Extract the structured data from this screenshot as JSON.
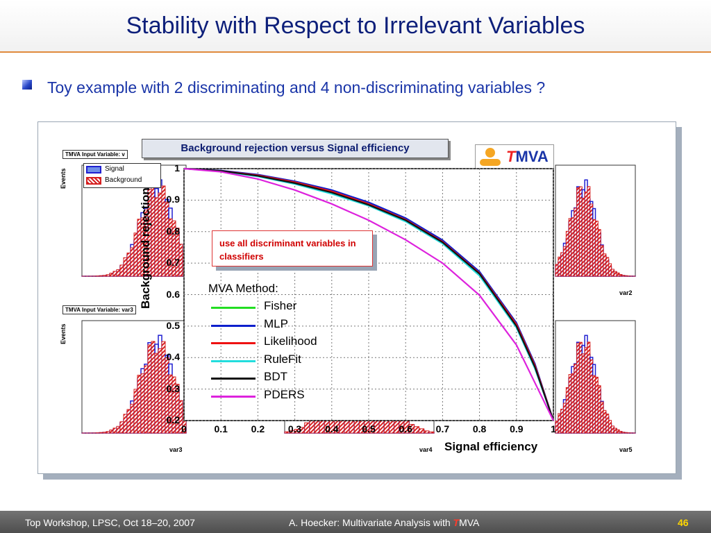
{
  "title": "Stability with Respect to Irrelevant Variables",
  "bullet": "Toy example with 2 discriminating and 4 non-discriminating variables ?",
  "histograms": {
    "tag_prefix": "TMVA Input Variable:",
    "tags": [
      "TMVA Input Variable: v",
      "TMVA Input Variable: var3"
    ],
    "events_label": "Events",
    "legend": [
      "Signal",
      "Background"
    ],
    "var_labels": [
      "var2",
      "var3",
      "var4",
      "var5"
    ],
    "colors": {
      "signal": "#1f1fd1",
      "background": "#d62020"
    }
  },
  "overlay": {
    "title": "Background rejection versus Signal efficiency",
    "logo_text": "MVA",
    "logo_t": "T"
  },
  "chart_data": {
    "type": "line",
    "title": "Background rejection versus Signal efficiency",
    "xlabel": "Signal efficiency",
    "ylabel": "Background rejection",
    "xlim": [
      0,
      1
    ],
    "ylim": [
      0.2,
      1
    ],
    "xticks": [
      "0",
      "0.1",
      "0.2",
      "0.3",
      "0.4",
      "0.5",
      "0.6",
      "0.7",
      "0.8",
      "0.9",
      "1"
    ],
    "yticks": [
      "1",
      "0.9",
      "0.8",
      "0.7",
      "0.6",
      "0.5",
      "0.4",
      "0.3",
      "0.2"
    ],
    "grid": true,
    "legend_title": "MVA Method:",
    "x": [
      0,
      0.1,
      0.2,
      0.3,
      0.4,
      0.5,
      0.6,
      0.7,
      0.8,
      0.9,
      0.95,
      1.0
    ],
    "series": [
      {
        "name": "Fisher",
        "color": "#22dd22",
        "values": [
          1.0,
          0.993,
          0.978,
          0.955,
          0.925,
          0.885,
          0.835,
          0.765,
          0.665,
          0.5,
          0.37,
          0.2
        ]
      },
      {
        "name": "MLP",
        "color": "#0d1fcc",
        "values": [
          1.0,
          0.994,
          0.981,
          0.96,
          0.932,
          0.893,
          0.843,
          0.773,
          0.673,
          0.51,
          0.38,
          0.2
        ]
      },
      {
        "name": "Likelihood",
        "color": "#ee1111",
        "values": [
          1.0,
          0.993,
          0.979,
          0.957,
          0.928,
          0.888,
          0.838,
          0.768,
          0.668,
          0.505,
          0.375,
          0.2
        ]
      },
      {
        "name": "RuleFit",
        "color": "#22dddd",
        "values": [
          1.0,
          0.992,
          0.975,
          0.951,
          0.92,
          0.882,
          0.832,
          0.762,
          0.66,
          0.495,
          0.365,
          0.2
        ]
      },
      {
        "name": "BDT",
        "color": "#111111",
        "values": [
          1.0,
          0.993,
          0.977,
          0.954,
          0.924,
          0.885,
          0.836,
          0.766,
          0.666,
          0.5,
          0.37,
          0.2
        ]
      },
      {
        "name": "PDERS",
        "color": "#dd22dd",
        "values": [
          1.0,
          0.99,
          0.967,
          0.932,
          0.888,
          0.836,
          0.774,
          0.7,
          0.598,
          0.44,
          0.32,
          0.2
        ]
      }
    ]
  },
  "note": "use all discriminant variables in classifiers",
  "footer": {
    "left": "Top Workshop, LPSC, Oct 18–20, 2007",
    "center_prefix": "A. Hoecker: Multivariate Analysis with ",
    "center_t": "T",
    "center_suffix": "MVA",
    "page": "46"
  }
}
